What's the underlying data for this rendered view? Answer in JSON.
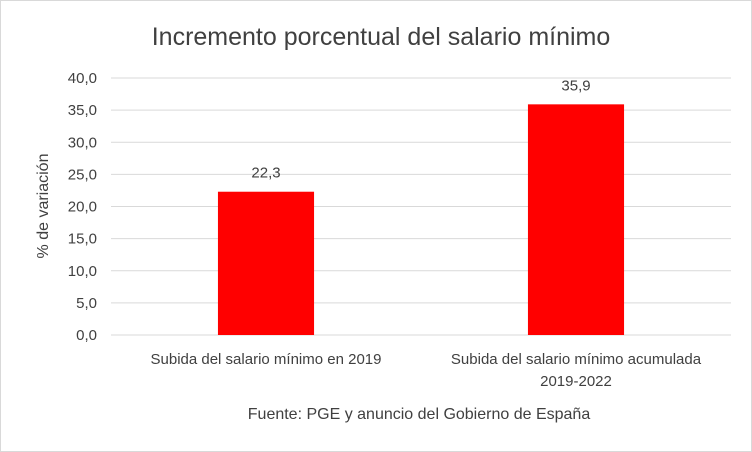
{
  "chart_data": {
    "type": "bar",
    "title": "Incremento porcentual del salario mínimo",
    "ylabel": "% de variación",
    "xlabel": "",
    "categories": [
      [
        "Subida del salario mínimo en 2019"
      ],
      [
        "Subida del salario mínimo acumulada",
        "2019-2022"
      ]
    ],
    "series": [
      {
        "values": [
          22.3,
          35.9
        ],
        "data_labels": [
          "22,3",
          "35,9"
        ],
        "color": "#ff0000"
      }
    ],
    "ylim": [
      0,
      40
    ],
    "yticks": [
      0,
      5,
      10,
      15,
      20,
      25,
      30,
      35,
      40
    ],
    "ytick_labels": [
      "0,0",
      "5,0",
      "10,0",
      "15,0",
      "20,0",
      "25,0",
      "30,0",
      "35,0",
      "40,0"
    ],
    "grid": true,
    "legend": "none",
    "source": "Fuente: PGE y anuncio del Gobierno de España"
  }
}
